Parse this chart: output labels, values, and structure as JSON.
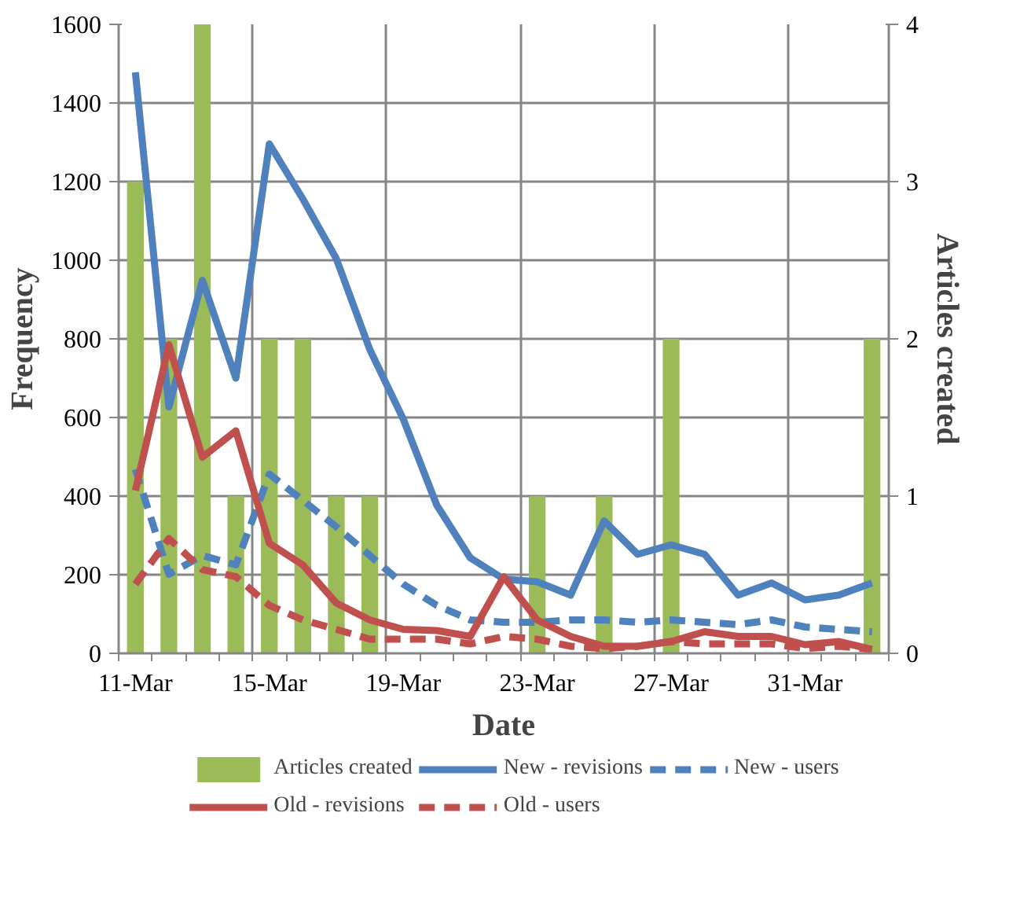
{
  "chart_data": {
    "type": "line",
    "xlabel": "Date",
    "ylabel": "Frequency",
    "y2label": "Articles created",
    "categories": [
      "11-Mar",
      null,
      null,
      null,
      "15-Mar",
      null,
      null,
      null,
      "19-Mar",
      null,
      null,
      null,
      "23-Mar",
      null,
      null,
      null,
      "27-Mar",
      null,
      null,
      null,
      "31-Mar",
      null,
      null
    ],
    "ylim": [
      0,
      1600
    ],
    "yticks": [
      0,
      200,
      400,
      600,
      800,
      1000,
      1200,
      1400,
      1600
    ],
    "y2lim": [
      0,
      4
    ],
    "y2ticks": [
      0,
      1,
      2,
      3,
      4
    ],
    "grid": true,
    "legend": "bottom",
    "series": [
      {
        "name": "Articles created",
        "type": "bar",
        "axis": "y2",
        "color": "#9bbb59",
        "values": [
          3,
          2,
          4,
          1,
          2,
          2,
          1,
          1,
          0,
          0,
          0,
          0,
          1,
          0,
          1,
          0,
          2,
          0,
          0,
          0,
          0,
          0,
          2
        ]
      },
      {
        "name": "New - revisions",
        "line_style": "solid",
        "color": "#4f81bd",
        "values": [
          1478,
          627,
          949,
          700,
          1296,
          1156,
          1004,
          773,
          596,
          377,
          243,
          189,
          182,
          148,
          337,
          252,
          276,
          252,
          148,
          179,
          136,
          148,
          179
        ]
      },
      {
        "name": "New - users",
        "line_style": "dashed",
        "color": "#4f81bd",
        "values": [
          468,
          201,
          249,
          225,
          456,
          389,
          322,
          249,
          176,
          122,
          85,
          79,
          79,
          85,
          85,
          79,
          85,
          79,
          73,
          85,
          67,
          61,
          55
        ]
      },
      {
        "name": "Old - revisions",
        "line_style": "solid",
        "color": "#c0504d",
        "values": [
          414,
          785,
          499,
          566,
          280,
          225,
          128,
          85,
          61,
          58,
          43,
          195,
          85,
          43,
          18,
          18,
          30,
          55,
          43,
          43,
          22,
          30,
          10
        ]
      },
      {
        "name": "Old - users",
        "line_style": "dashed",
        "color": "#c0504d",
        "values": [
          176,
          292,
          213,
          195,
          122,
          85,
          61,
          36,
          36,
          36,
          24,
          43,
          36,
          18,
          12,
          18,
          30,
          24,
          24,
          24,
          12,
          18,
          10
        ]
      }
    ]
  }
}
